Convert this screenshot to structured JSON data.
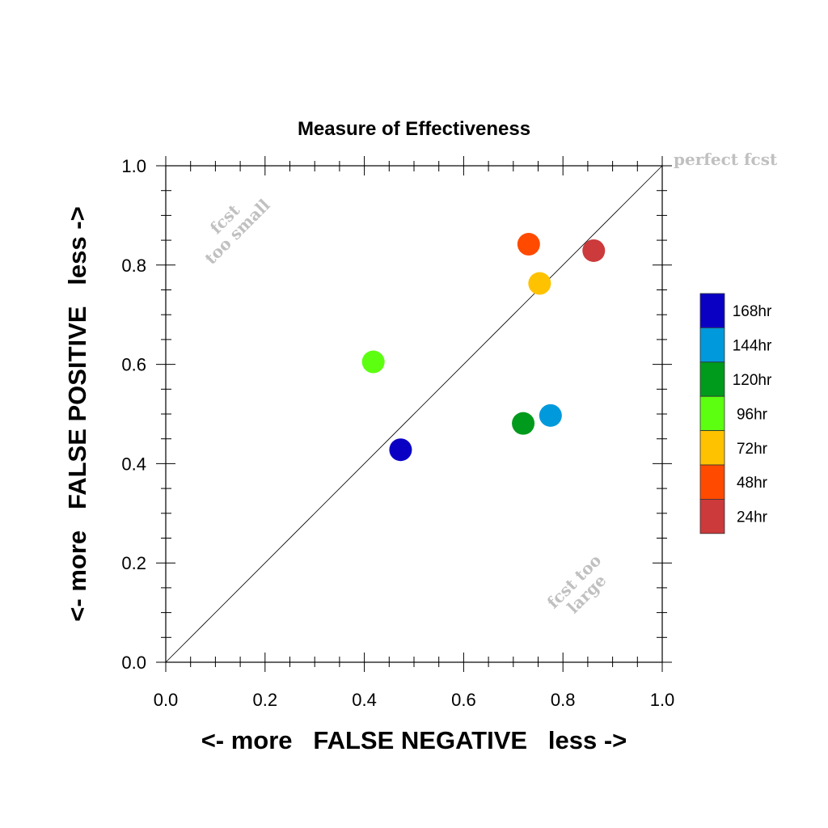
{
  "chart_data": {
    "type": "scatter",
    "title": "Measure of Effectiveness",
    "xlabel": "<- more   FALSE NEGATIVE   less ->",
    "ylabel": "<- more   FALSE POSITIVE   less ->",
    "xlim": [
      0.0,
      1.0
    ],
    "ylim": [
      0.0,
      1.0
    ],
    "xticks": [
      "0.0",
      "0.2",
      "0.4",
      "0.6",
      "0.8",
      "1.0"
    ],
    "yticks": [
      "0.0",
      "0.2",
      "0.4",
      "0.6",
      "0.8",
      "1.0"
    ],
    "grid": false,
    "reference_line": "diagonal y = x",
    "annotations": {
      "perfect": "perfect fcst",
      "small_line1": "fcst",
      "small_line2": "too small",
      "large_line1": "fcst too",
      "large_line2": "large"
    },
    "legend_position": "right",
    "series": [
      {
        "name": "168hr",
        "color": "#0a00c4",
        "x": 0.473,
        "y": 0.428
      },
      {
        "name": "144hr",
        "color": "#0099dc",
        "x": 0.775,
        "y": 0.497
      },
      {
        "name": "120hr",
        "color": "#009a1c",
        "x": 0.72,
        "y": 0.481
      },
      {
        "name": "96hr",
        "color": "#5cff10",
        "x": 0.418,
        "y": 0.605
      },
      {
        "name": "72hr",
        "color": "#ffc200",
        "x": 0.753,
        "y": 0.763
      },
      {
        "name": "48hr",
        "color": "#ff4a00",
        "x": 0.731,
        "y": 0.842
      },
      {
        "name": "24hr",
        "color": "#cc3a3c",
        "x": 0.862,
        "y": 0.829
      }
    ]
  }
}
